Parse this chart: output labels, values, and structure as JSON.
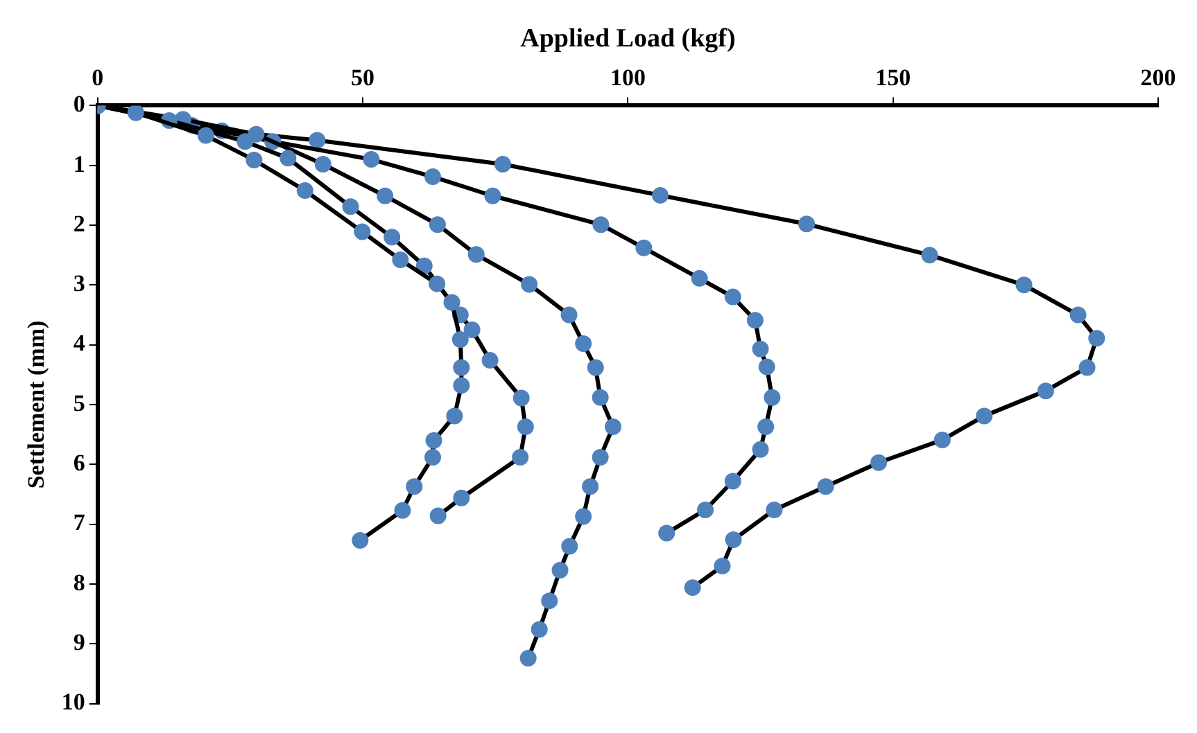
{
  "chart_data": {
    "type": "line",
    "xlabel": "Applied Load (kgf)",
    "ylabel": "Settlement (mm)",
    "xlim": [
      0,
      200
    ],
    "xticks": [
      0,
      50,
      100,
      150,
      200
    ],
    "ylim": [
      10,
      0
    ],
    "yticks": [
      0,
      1,
      2,
      3,
      4,
      5,
      6,
      7,
      8,
      9,
      10
    ],
    "grid": false,
    "legend": false,
    "marker": "circle",
    "line_style": "solid",
    "series": [
      {
        "color": "#4f81bd",
        "x": [
          0,
          7.2,
          20.4,
          29.5,
          39.1,
          49.9,
          57.1,
          64.0,
          66.8,
          68.4,
          68.6,
          68.6,
          67.3,
          63.4,
          63.2,
          59.7,
          57.5,
          49.5
        ],
        "values": [
          0,
          0.12,
          0.5,
          0.91,
          1.42,
          2.11,
          2.58,
          2.98,
          3.29,
          3.91,
          4.38,
          4.68,
          5.19,
          5.6,
          5.88,
          6.37,
          6.77,
          7.27
        ]
      },
      {
        "color": "#4f81bd",
        "x": [
          0,
          13.5,
          27.8,
          35.9,
          47.7,
          55.5,
          61.6,
          68.4,
          70.6,
          74.0,
          79.9,
          80.7,
          79.7,
          68.6,
          64.2
        ],
        "values": [
          0,
          0.25,
          0.6,
          0.88,
          1.69,
          2.2,
          2.68,
          3.5,
          3.75,
          4.26,
          4.89,
          5.37,
          5.88,
          6.56,
          6.86
        ]
      },
      {
        "color": "#4f81bd",
        "x": [
          0,
          16.1,
          29.9,
          42.5,
          54.2,
          64.1,
          71.4,
          81.4,
          88.9,
          91.6,
          93.9,
          94.8,
          97.2,
          94.8,
          92.9,
          91.6,
          89.0,
          87.2,
          85.2,
          83.3,
          81.2
        ],
        "values": [
          0,
          0.23,
          0.48,
          0.98,
          1.51,
          1.99,
          2.49,
          2.99,
          3.5,
          3.98,
          4.38,
          4.88,
          5.37,
          5.88,
          6.37,
          6.87,
          7.37,
          7.77,
          8.28,
          8.76,
          9.24
        ]
      },
      {
        "color": "#4f81bd",
        "x": [
          0,
          17.8,
          33.0,
          51.6,
          63.2,
          74.5,
          94.9,
          103.0,
          113.5,
          119.8,
          124.0,
          125.0,
          126.2,
          127.2,
          126.0,
          125.0,
          119.8,
          114.6,
          107.3
        ],
        "values": [
          0,
          0.33,
          0.6,
          0.9,
          1.19,
          1.51,
          1.99,
          2.38,
          2.89,
          3.2,
          3.59,
          4.07,
          4.37,
          4.88,
          5.37,
          5.75,
          6.28,
          6.76,
          7.15
        ]
      },
      {
        "color": "#4f81bd",
        "x": [
          0,
          23.4,
          41.4,
          76.4,
          106.1,
          133.7,
          156.9,
          174.7,
          184.9,
          188.4,
          186.6,
          178.8,
          167.2,
          159.3,
          147.3,
          137.3,
          127.6,
          119.9,
          117.8,
          112.2
        ],
        "values": [
          0,
          0.42,
          0.58,
          0.98,
          1.5,
          1.98,
          2.5,
          3.0,
          3.5,
          3.89,
          4.38,
          4.77,
          5.19,
          5.59,
          5.97,
          6.37,
          6.76,
          7.26,
          7.7,
          8.06
        ]
      }
    ]
  }
}
